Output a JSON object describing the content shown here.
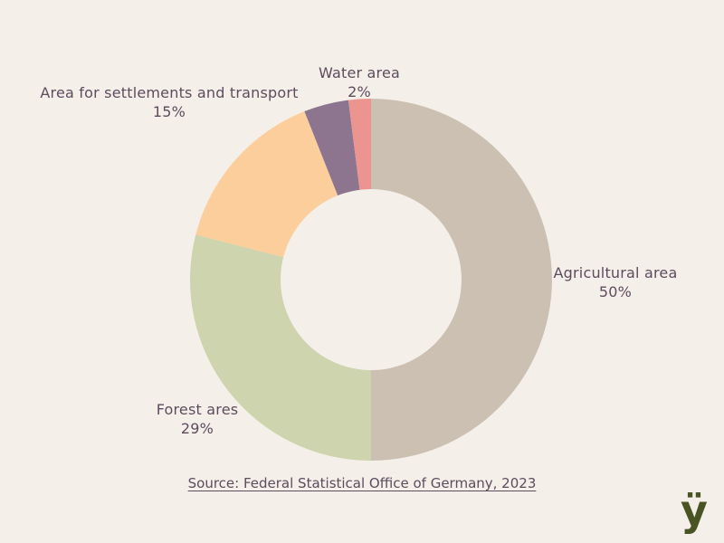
{
  "background_color": "#f4f0e9",
  "text_color": "#5d4b5e",
  "chart_data": {
    "type": "pie",
    "subtype": "donut",
    "title": "",
    "legend_position": "none",
    "labels_position": "outside",
    "start_angle_deg": 0,
    "direction": "clockwise",
    "inner_radius_ratio": 0.5,
    "slices": [
      {
        "label": "Agricultural area",
        "pct_label": "50%",
        "value": 50,
        "color": "#ccc0b2",
        "label_visible": true
      },
      {
        "label": "Forest ares",
        "pct_label": "29%",
        "value": 29,
        "color": "#cdd4ae",
        "label_visible": true
      },
      {
        "label": "Area for settlements and transport",
        "pct_label": "15%",
        "value": 15,
        "color": "#fbce9c",
        "label_visible": true
      },
      {
        "label": "",
        "pct_label": "",
        "value": 4,
        "color": "#8d7590",
        "label_visible": false
      },
      {
        "label": "Water area",
        "pct_label": "2%",
        "value": 2,
        "color": "#eb9490",
        "label_visible": true
      }
    ]
  },
  "source": {
    "text": "Source: Federal Statistical Office of Germany, 2023"
  },
  "logo": {
    "glyph": "ÿ",
    "color": "#4a5323"
  }
}
